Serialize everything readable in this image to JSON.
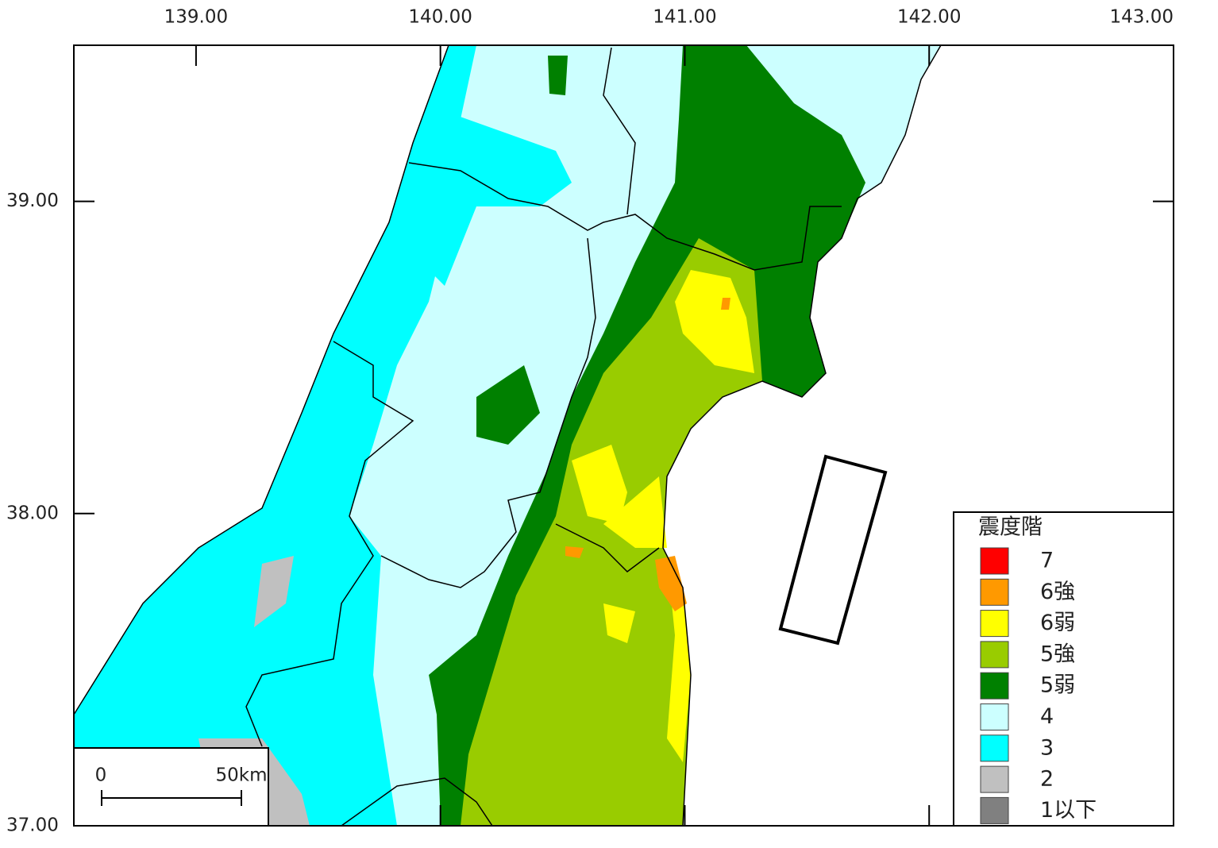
{
  "map": {
    "xlim": [
      138.5,
      143
    ],
    "ylim": [
      37,
      39.5
    ],
    "x_ticks": [
      {
        "value": 139,
        "label": "139.00"
      },
      {
        "value": 140,
        "label": "140.00"
      },
      {
        "value": 141,
        "label": "141.00"
      },
      {
        "value": 142,
        "label": "142.00"
      },
      {
        "value": 143,
        "label": "143.00"
      }
    ],
    "y_ticks": [
      {
        "value": 39,
        "label": "39.00"
      },
      {
        "value": 38,
        "label": "38.00"
      },
      {
        "value": 37,
        "label": "37.00"
      }
    ],
    "legend": {
      "title": "震度階",
      "items": [
        {
          "label": "7",
          "color": "#ff0000"
        },
        {
          "label": "6強",
          "color": "#ff9900"
        },
        {
          "label": "6弱",
          "color": "#ffff00"
        },
        {
          "label": "5強",
          "color": "#99cc00"
        },
        {
          "label": "5弱",
          "color": "#008000"
        },
        {
          "label": "4",
          "color": "#ccffff"
        },
        {
          "label": "3",
          "color": "#00ffff"
        },
        {
          "label": "2",
          "color": "#c0c0c0"
        },
        {
          "label": "1以下",
          "color": "#808080"
        }
      ]
    },
    "scale_bar": {
      "start": "0",
      "end": "50km"
    }
  }
}
